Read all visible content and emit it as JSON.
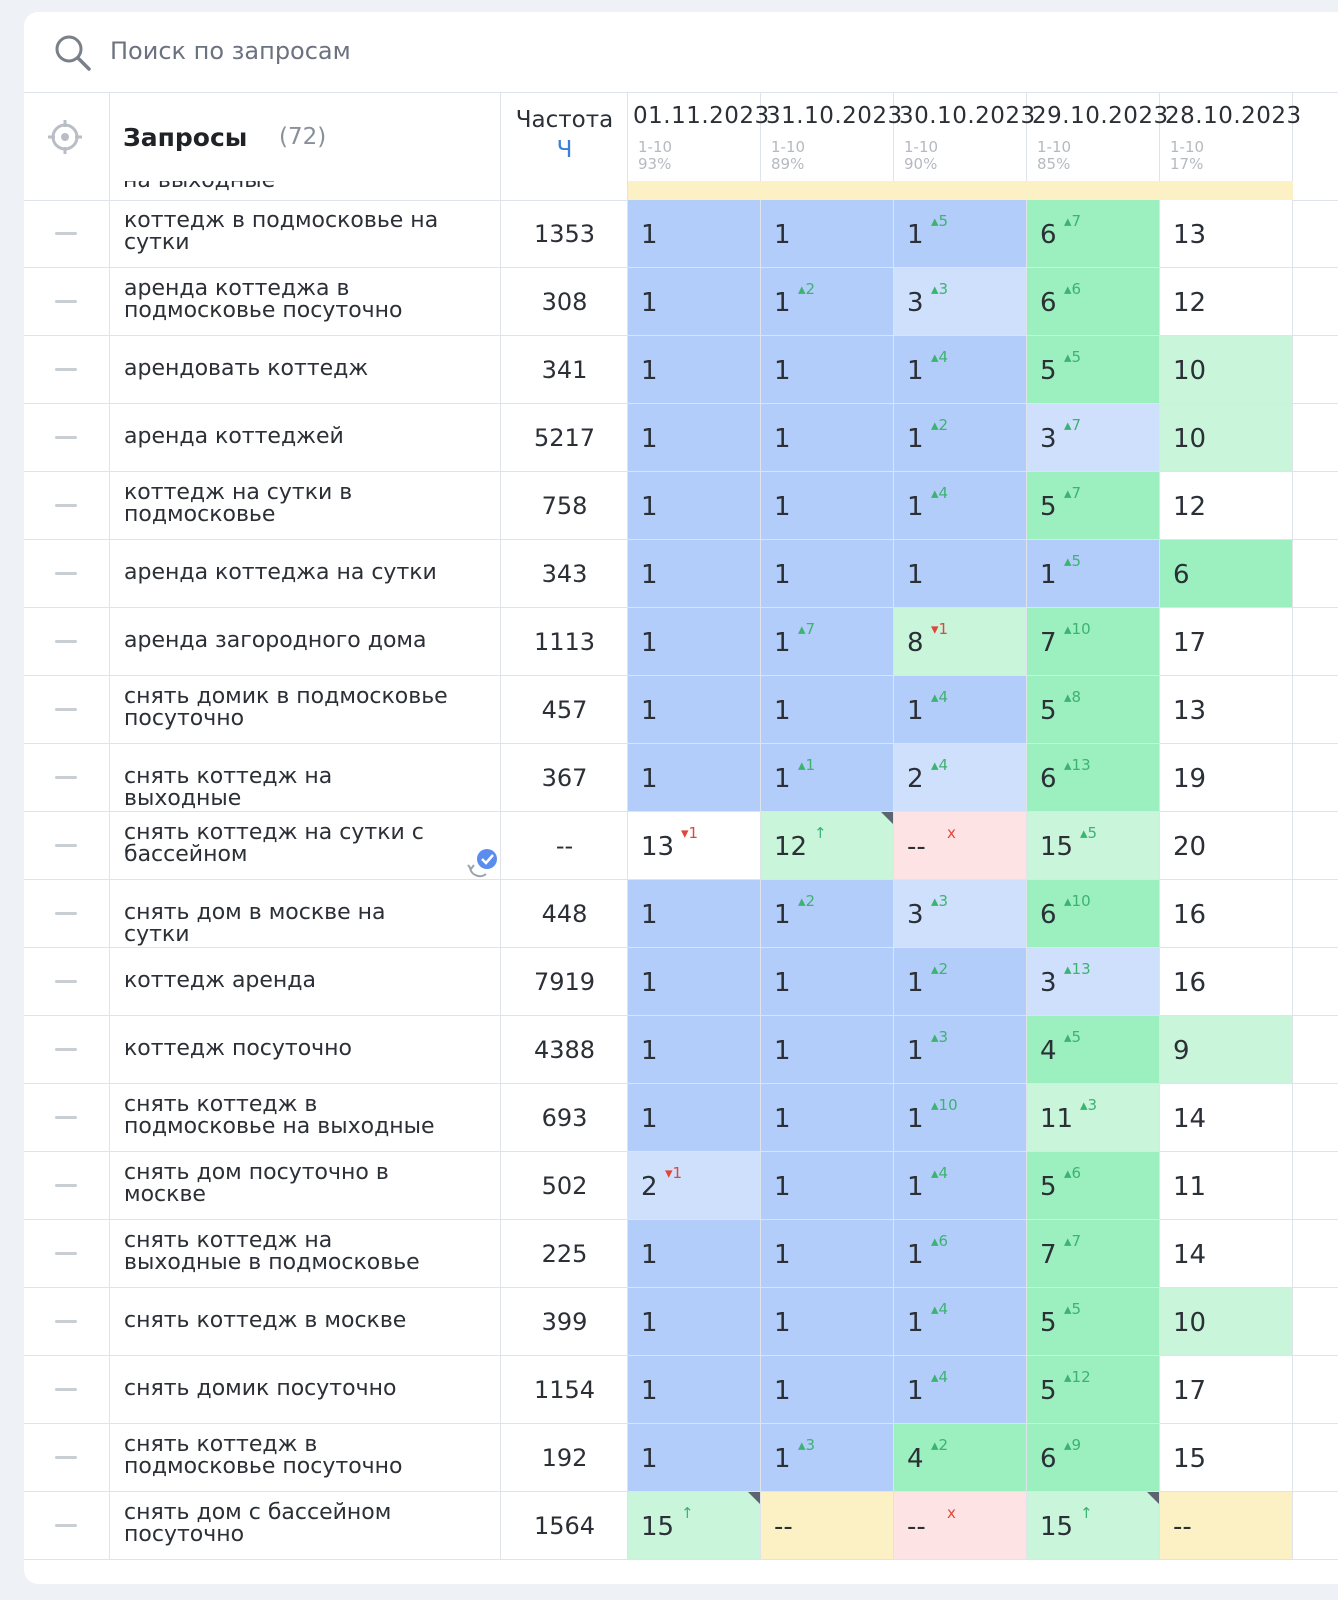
{
  "search": {
    "placeholder": "Поиск по запросам"
  },
  "header": {
    "title": "Запросы",
    "count": "(72)",
    "frequency_label": "Частота",
    "frequency_sub": "Ч",
    "dates": [
      {
        "date": "01.11.2023",
        "range": "1-10",
        "percent": "93%"
      },
      {
        "date": "31.10.2023",
        "range": "1-10",
        "percent": "89%"
      },
      {
        "date": "30.10.2023",
        "range": "1-10",
        "percent": "90%"
      },
      {
        "date": "29.10.2023",
        "range": "1-10",
        "percent": "85%"
      },
      {
        "date": "28.10.2023",
        "range": "1-10",
        "percent": "17%"
      }
    ]
  },
  "cut_row_text": "на выходные",
  "colors": {
    "top": "#b3cdfb",
    "top3": "#cfe0fd",
    "top5": "#9cefbf",
    "top10": "#c9f5da",
    "low": "#ffffff",
    "none": "#fbf1c4",
    "lost": "#fde3e3",
    "new": "#c9f5da",
    "up": "#3cb371",
    "down": "#e0473b"
  },
  "rows": [
    {
      "query": "коттедж в подмосковье на сутки",
      "freq": "1353",
      "cells": [
        {
          "v": "1",
          "c": "top"
        },
        {
          "v": "1",
          "c": "top"
        },
        {
          "v": "1",
          "d": "▴5",
          "t": "up",
          "c": "top"
        },
        {
          "v": "6",
          "d": "▴7",
          "t": "up",
          "c": "top5"
        },
        {
          "v": "13",
          "c": "low"
        }
      ]
    },
    {
      "query": "аренда коттеджа в подмосковье посуточно",
      "freq": "308",
      "cells": [
        {
          "v": "1",
          "c": "top"
        },
        {
          "v": "1",
          "d": "▴2",
          "t": "up",
          "c": "top"
        },
        {
          "v": "3",
          "d": "▴3",
          "t": "up",
          "c": "top3"
        },
        {
          "v": "6",
          "d": "▴6",
          "t": "up",
          "c": "top5"
        },
        {
          "v": "12",
          "c": "low"
        }
      ]
    },
    {
      "query": "арендовать коттедж",
      "freq": "341",
      "cells": [
        {
          "v": "1",
          "c": "top"
        },
        {
          "v": "1",
          "c": "top"
        },
        {
          "v": "1",
          "d": "▴4",
          "t": "up",
          "c": "top"
        },
        {
          "v": "5",
          "d": "▴5",
          "t": "up",
          "c": "top5"
        },
        {
          "v": "10",
          "c": "top10"
        }
      ]
    },
    {
      "query": "аренда коттеджей",
      "freq": "5217",
      "cells": [
        {
          "v": "1",
          "c": "top"
        },
        {
          "v": "1",
          "c": "top"
        },
        {
          "v": "1",
          "d": "▴2",
          "t": "up",
          "c": "top"
        },
        {
          "v": "3",
          "d": "▴7",
          "t": "up",
          "c": "top3"
        },
        {
          "v": "10",
          "c": "top10"
        }
      ]
    },
    {
      "query": "коттедж на сутки в подмосковье",
      "freq": "758",
      "cells": [
        {
          "v": "1",
          "c": "top"
        },
        {
          "v": "1",
          "c": "top"
        },
        {
          "v": "1",
          "d": "▴4",
          "t": "up",
          "c": "top"
        },
        {
          "v": "5",
          "d": "▴7",
          "t": "up",
          "c": "top5"
        },
        {
          "v": "12",
          "c": "low"
        }
      ]
    },
    {
      "query": "аренда коттеджа на сутки",
      "freq": "343",
      "cells": [
        {
          "v": "1",
          "c": "top"
        },
        {
          "v": "1",
          "c": "top"
        },
        {
          "v": "1",
          "c": "top"
        },
        {
          "v": "1",
          "d": "▴5",
          "t": "up",
          "c": "top"
        },
        {
          "v": "6",
          "c": "top5"
        }
      ]
    },
    {
      "query": "аренда загородного дома",
      "freq": "1113",
      "cells": [
        {
          "v": "1",
          "c": "top"
        },
        {
          "v": "1",
          "d": "▴7",
          "t": "up",
          "c": "top"
        },
        {
          "v": "8",
          "d": "▾1",
          "t": "down",
          "c": "top10"
        },
        {
          "v": "7",
          "d": "▴10",
          "t": "up",
          "c": "top5"
        },
        {
          "v": "17",
          "c": "low"
        }
      ]
    },
    {
      "query": "снять домик в подмосковье посуточно",
      "freq": "457",
      "cells": [
        {
          "v": "1",
          "c": "top"
        },
        {
          "v": "1",
          "c": "top"
        },
        {
          "v": "1",
          "d": "▴4",
          "t": "up",
          "c": "top"
        },
        {
          "v": "5",
          "d": "▴8",
          "t": "up",
          "c": "top5"
        },
        {
          "v": "13",
          "c": "low"
        }
      ]
    },
    {
      "query": "снять коттедж на выходные",
      "freq": "367",
      "cells": [
        {
          "v": "1",
          "c": "top"
        },
        {
          "v": "1",
          "d": "▴1",
          "t": "up",
          "c": "top"
        },
        {
          "v": "2",
          "d": "▴4",
          "t": "up",
          "c": "top3"
        },
        {
          "v": "6",
          "d": "▴13",
          "t": "up",
          "c": "top5"
        },
        {
          "v": "19",
          "c": "low"
        }
      ]
    },
    {
      "query": "снять коттедж на сутки с бассейном",
      "freq": "--",
      "icon": true,
      "cells": [
        {
          "v": "13",
          "d": "▾1",
          "t": "down",
          "c": "low"
        },
        {
          "v": "12",
          "d": "↑",
          "t": "up",
          "c": "new",
          "tri": true
        },
        {
          "v": "--",
          "d": "x",
          "t": "down",
          "c": "lost"
        },
        {
          "v": "15",
          "d": "▴5",
          "t": "up",
          "c": "top10"
        },
        {
          "v": "20",
          "c": "low"
        }
      ]
    },
    {
      "query": "снять дом в москве на сутки",
      "freq": "448",
      "cells": [
        {
          "v": "1",
          "c": "top"
        },
        {
          "v": "1",
          "d": "▴2",
          "t": "up",
          "c": "top"
        },
        {
          "v": "3",
          "d": "▴3",
          "t": "up",
          "c": "top3"
        },
        {
          "v": "6",
          "d": "▴10",
          "t": "up",
          "c": "top5"
        },
        {
          "v": "16",
          "c": "low"
        }
      ]
    },
    {
      "query": "коттедж аренда",
      "freq": "7919",
      "cells": [
        {
          "v": "1",
          "c": "top"
        },
        {
          "v": "1",
          "c": "top"
        },
        {
          "v": "1",
          "d": "▴2",
          "t": "up",
          "c": "top"
        },
        {
          "v": "3",
          "d": "▴13",
          "t": "up",
          "c": "top3"
        },
        {
          "v": "16",
          "c": "low"
        }
      ]
    },
    {
      "query": "коттедж посуточно",
      "freq": "4388",
      "cells": [
        {
          "v": "1",
          "c": "top"
        },
        {
          "v": "1",
          "c": "top"
        },
        {
          "v": "1",
          "d": "▴3",
          "t": "up",
          "c": "top"
        },
        {
          "v": "4",
          "d": "▴5",
          "t": "up",
          "c": "top5"
        },
        {
          "v": "9",
          "c": "top10"
        }
      ]
    },
    {
      "query": "снять коттедж в подмосковье на выходные",
      "freq": "693",
      "cells": [
        {
          "v": "1",
          "c": "top"
        },
        {
          "v": "1",
          "c": "top"
        },
        {
          "v": "1",
          "d": "▴10",
          "t": "up",
          "c": "top"
        },
        {
          "v": "11",
          "d": "▴3",
          "t": "up",
          "c": "top10"
        },
        {
          "v": "14",
          "c": "low"
        }
      ]
    },
    {
      "query": "снять дом посуточно в москве",
      "freq": "502",
      "cells": [
        {
          "v": "2",
          "d": "▾1",
          "t": "down",
          "c": "top3"
        },
        {
          "v": "1",
          "c": "top"
        },
        {
          "v": "1",
          "d": "▴4",
          "t": "up",
          "c": "top"
        },
        {
          "v": "5",
          "d": "▴6",
          "t": "up",
          "c": "top5"
        },
        {
          "v": "11",
          "c": "low"
        }
      ]
    },
    {
      "query": "снять коттедж на выходные в подмосковье",
      "freq": "225",
      "cells": [
        {
          "v": "1",
          "c": "top"
        },
        {
          "v": "1",
          "c": "top"
        },
        {
          "v": "1",
          "d": "▴6",
          "t": "up",
          "c": "top"
        },
        {
          "v": "7",
          "d": "▴7",
          "t": "up",
          "c": "top5"
        },
        {
          "v": "14",
          "c": "low"
        }
      ]
    },
    {
      "query": "снять коттедж в москве",
      "freq": "399",
      "cells": [
        {
          "v": "1",
          "c": "top"
        },
        {
          "v": "1",
          "c": "top"
        },
        {
          "v": "1",
          "d": "▴4",
          "t": "up",
          "c": "top"
        },
        {
          "v": "5",
          "d": "▴5",
          "t": "up",
          "c": "top5"
        },
        {
          "v": "10",
          "c": "top10"
        }
      ]
    },
    {
      "query": "снять домик посуточно",
      "freq": "1154",
      "cells": [
        {
          "v": "1",
          "c": "top"
        },
        {
          "v": "1",
          "c": "top"
        },
        {
          "v": "1",
          "d": "▴4",
          "t": "up",
          "c": "top"
        },
        {
          "v": "5",
          "d": "▴12",
          "t": "up",
          "c": "top5"
        },
        {
          "v": "17",
          "c": "low"
        }
      ]
    },
    {
      "query": "снять коттедж в подмосковье посуточно",
      "freq": "192",
      "cells": [
        {
          "v": "1",
          "c": "top"
        },
        {
          "v": "1",
          "d": "▴3",
          "t": "up",
          "c": "top"
        },
        {
          "v": "4",
          "d": "▴2",
          "t": "up",
          "c": "top5"
        },
        {
          "v": "6",
          "d": "▴9",
          "t": "up",
          "c": "top5"
        },
        {
          "v": "15",
          "c": "low"
        }
      ]
    },
    {
      "query": "снять дом с бассейном посуточно",
      "freq": "1564",
      "cells": [
        {
          "v": "15",
          "d": "↑",
          "t": "up",
          "c": "new",
          "tri": true
        },
        {
          "v": "--",
          "c": "none"
        },
        {
          "v": "--",
          "d": "x",
          "t": "down",
          "c": "lost"
        },
        {
          "v": "15",
          "d": "↑",
          "t": "up",
          "c": "new",
          "tri": true
        },
        {
          "v": "--",
          "c": "none"
        }
      ]
    }
  ]
}
